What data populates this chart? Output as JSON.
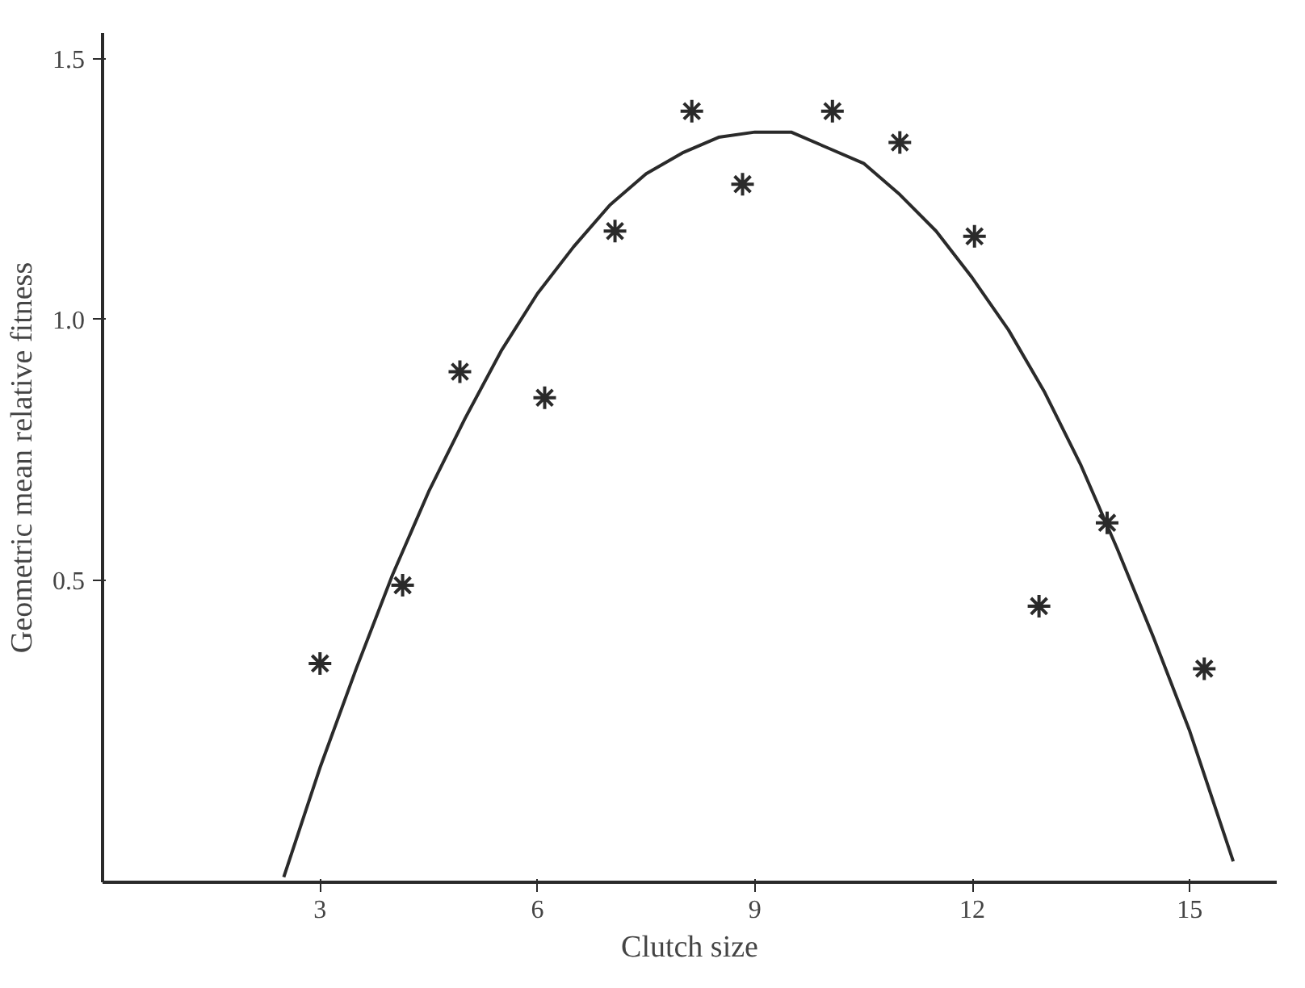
{
  "chart_data": {
    "type": "scatter",
    "xlabel": "Clutch size",
    "ylabel": "Geometric mean relative fitness",
    "xlim": [
      0,
      16.2
    ],
    "ylim": [
      -0.08,
      1.55
    ],
    "xticks": [
      3,
      6,
      9,
      12,
      15
    ],
    "yticks": [
      0.5,
      {
        "value": 1.0,
        "label": "1.0"
      },
      1.5
    ],
    "grid": false,
    "marker": "cross",
    "series": [
      {
        "color": "#2a2a2a",
        "x": [
          3,
          4.14,
          4.93,
          6.1,
          7.07,
          8.13,
          8.83,
          10.07,
          11.0,
          12.03,
          12.92,
          13.86,
          15.2
        ],
        "values": [
          0.34,
          0.49,
          0.9,
          0.85,
          1.17,
          1.4,
          1.26,
          1.4,
          1.34,
          1.16,
          0.45,
          0.61,
          0.33
        ]
      },
      {
        "type": "line",
        "color": "#2a2a2a",
        "line_style": "solid",
        "marker": "none",
        "x": [
          2.5,
          3,
          3.5,
          4,
          4.5,
          5,
          5.5,
          6,
          6.5,
          7,
          7.5,
          8,
          8.5,
          9,
          9.5,
          10,
          10.5,
          11,
          11.5,
          12,
          12.5,
          13,
          13.5,
          14,
          14.5,
          15,
          15.6
        ],
        "values": [
          -0.07,
          0.14,
          0.33,
          0.51,
          0.67,
          0.81,
          0.94,
          1.05,
          1.14,
          1.22,
          1.28,
          1.32,
          1.35,
          1.36,
          1.36,
          1.33,
          1.3,
          1.24,
          1.17,
          1.08,
          0.98,
          0.86,
          0.72,
          0.56,
          0.39,
          0.21,
          -0.04
        ]
      }
    ]
  }
}
